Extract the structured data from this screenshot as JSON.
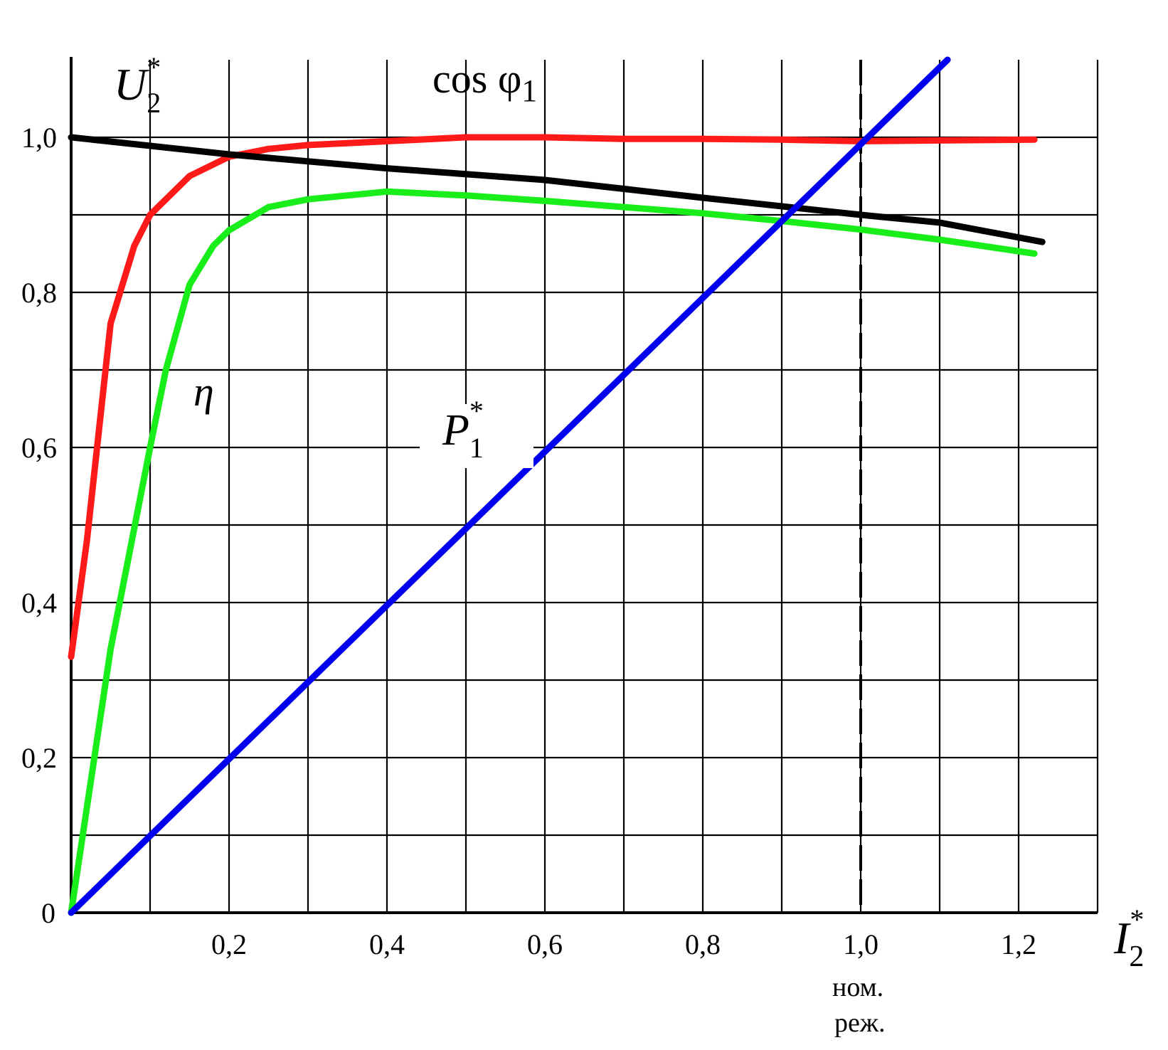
{
  "chart_data": {
    "type": "line",
    "xlabel": {
      "main": "I",
      "sub": "2",
      "sup": "*"
    },
    "xlim": [
      0,
      1.3
    ],
    "ylim": [
      0,
      1.1
    ],
    "grid": true,
    "x_ticks": [
      {
        "value": 0.2,
        "label": "0,2"
      },
      {
        "value": 0.4,
        "label": "0,4"
      },
      {
        "value": 0.6,
        "label": "0,6"
      },
      {
        "value": 0.8,
        "label": "0,8"
      },
      {
        "value": 1.0,
        "label": "1,0"
      },
      {
        "value": 1.2,
        "label": "1,2"
      }
    ],
    "y_ticks": [
      {
        "value": 0,
        "label": "0"
      },
      {
        "value": 0.2,
        "label": "0,2"
      },
      {
        "value": 0.4,
        "label": "0,4"
      },
      {
        "value": 0.6,
        "label": "0,6"
      },
      {
        "value": 0.8,
        "label": "0,8"
      },
      {
        "value": 1.0,
        "label": "1,0"
      }
    ],
    "nominal_marker": {
      "x": 1.0,
      "label_line1": "ном.",
      "label_line2": "реж."
    },
    "series": [
      {
        "name": "cos φ1",
        "color": "#ff1a1a",
        "x": [
          0.0,
          0.02,
          0.05,
          0.08,
          0.1,
          0.15,
          0.2,
          0.25,
          0.3,
          0.4,
          0.5,
          0.6,
          0.7,
          0.8,
          0.9,
          1.0,
          1.1,
          1.22
        ],
        "y": [
          0.33,
          0.48,
          0.76,
          0.86,
          0.9,
          0.95,
          0.975,
          0.985,
          0.99,
          0.995,
          1.0,
          1.0,
          0.998,
          0.998,
          0.997,
          0.995,
          0.996,
          0.997
        ]
      },
      {
        "name": "η",
        "color": "#1aee1a",
        "x": [
          0.0,
          0.05,
          0.1,
          0.12,
          0.15,
          0.18,
          0.2,
          0.25,
          0.3,
          0.4,
          0.5,
          0.6,
          0.7,
          0.8,
          0.9,
          1.0,
          1.1,
          1.22
        ],
        "y": [
          0.0,
          0.34,
          0.6,
          0.7,
          0.81,
          0.86,
          0.88,
          0.91,
          0.92,
          0.93,
          0.925,
          0.918,
          0.91,
          0.902,
          0.892,
          0.881,
          0.868,
          0.85
        ]
      },
      {
        "name": "U2*",
        "color": "#000000",
        "x": [
          0.0,
          0.2,
          0.4,
          0.6,
          0.8,
          1.0,
          1.1,
          1.23
        ],
        "y": [
          1.0,
          0.978,
          0.96,
          0.945,
          0.922,
          0.9,
          0.89,
          0.865
        ]
      },
      {
        "name": "P1*",
        "color": "#0000ee",
        "x": [
          0.0,
          1.11
        ],
        "y": [
          0.0,
          1.1
        ]
      }
    ],
    "annotations": {
      "cos": {
        "main": "cos φ",
        "sub": "1"
      },
      "eta": {
        "main": "η"
      },
      "u2": {
        "main": "U",
        "sub": "2",
        "sup": "*"
      },
      "p1": {
        "main": "P",
        "sub": "1",
        "sup": "*"
      }
    }
  }
}
